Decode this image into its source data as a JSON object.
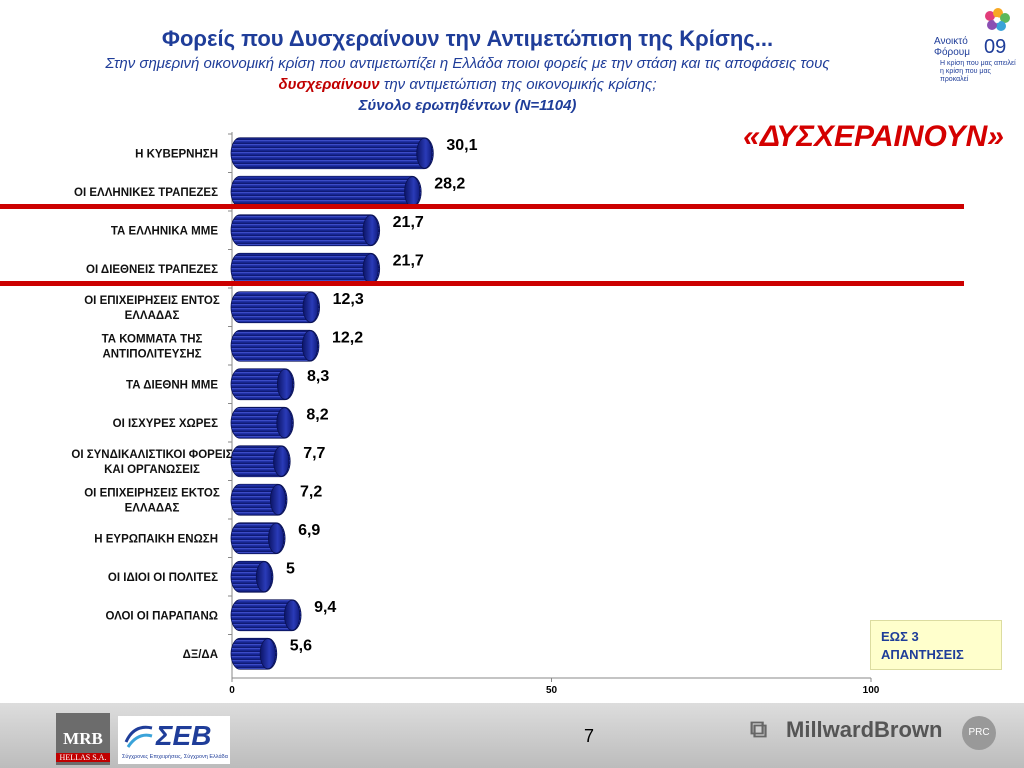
{
  "header": {
    "title": "Φορείς που Δυσχεραίνουν την Αντιμετώπιση της Κρίσης...",
    "subtitle_line1": "Στην σημερινή οικονομική κρίση που αντιμετωπίζει η Ελλάδα ποιοι φορείς με την στάση και τις αποφάσεις τους",
    "subtitle_highlight": "δυσχεραίνουν",
    "subtitle_line2_rest": " την αντιμετώπιση της οικονομικής κρίσης;",
    "sample": "Σύνολο ερωτηθέντων (N=1104)",
    "big_label": "«ΔΥΣΧΕΡΑΙΝΟΥΝ»"
  },
  "logo_top": {
    "text_line1": "Ανοικτό",
    "text_line2": "Φόρουμ",
    "year": "09",
    "tagline": "Η κρίση που μας απειλεί η κρίση που μας προκαλεί"
  },
  "note": {
    "line1": "ΕΩΣ 3",
    "line2": "ΑΠΑΝΤΗΣΕΙΣ"
  },
  "footer": {
    "mrb_text": "MRB",
    "mrb_sub": "HELLAS S.A.",
    "seb_text": "ΣΕΒ",
    "seb_tagline": "Σύγχρονες Επιχειρήσεις, Σύγχρονη Ελλάδα",
    "page_number": "7",
    "millward": "Millward",
    "brown": "Brown",
    "prc": "PRC"
  },
  "colors": {
    "bar": "#1a2a9c",
    "bar_dark": "#0b1466",
    "highlight_line": "#cc0000",
    "title": "#1f3d99"
  },
  "chart_data": {
    "type": "bar",
    "orientation": "horizontal",
    "categories": [
      "Η ΚΥΒΕΡΝΗΣΗ",
      "ΟΙ ΕΛΛΗΝΙΚΕΣ ΤΡΑΠΕΖΕΣ",
      "ΤΑ ΕΛΛΗΝΙΚΑ ΜΜΕ",
      "ΟΙ ΔΙΕΘΝΕΙΣ ΤΡΑΠΕΖΕΣ",
      "ΟΙ ΕΠΙΧΕΙΡΗΣΕΙΣ ΕΝΤΟΣ ΕΛΛΑΔΑΣ",
      "ΤΑ ΚΟΜΜΑΤΑ ΤΗΣ ΑΝΤΙΠΟΛΙΤΕΥΣΗΣ",
      "ΤΑ ΔΙΕΘΝΗ ΜΜΕ",
      "ΟΙ ΙΣΧΥΡΕΣ ΧΩΡΕΣ",
      "ΟΙ ΣΥΝΔΙΚΑΛΙΣΤΙΚΟΙ ΦΟΡΕΙΣ ΚΑΙ ΟΡΓΑΝΩΣΕΙΣ",
      "ΟΙ ΕΠΙΧΕΙΡΗΣΕΙΣ ΕΚΤΟΣ ΕΛΛΑΔΑΣ",
      "Η ΕΥΡΩΠΑΙΚΗ ΕΝΩΣΗ",
      "ΟΙ ΙΔΙΟΙ ΟΙ ΠΟΛΙΤΕΣ",
      "ΟΛΟΙ ΟΙ ΠΑΡΑΠΑΝΩ",
      "ΔΞ/ΔΑ"
    ],
    "category_lines": [
      [
        "Η ΚΥΒΕΡΝΗΣΗ"
      ],
      [
        "ΟΙ ΕΛΛΗΝΙΚΕΣ ΤΡΑΠΕΖΕΣ"
      ],
      [
        "ΤΑ ΕΛΛΗΝΙΚΑ ΜΜΕ"
      ],
      [
        "ΟΙ ΔΙΕΘΝΕΙΣ ΤΡΑΠΕΖΕΣ"
      ],
      [
        "ΟΙ ΕΠΙΧΕΙΡΗΣΕΙΣ ΕΝΤΟΣ",
        "ΕΛΛΑΔΑΣ"
      ],
      [
        "ΤΑ ΚΟΜΜΑΤΑ ΤΗΣ",
        "ΑΝΤΙΠΟΛΙΤΕΥΣΗΣ"
      ],
      [
        "ΤΑ ΔΙΕΘΝΗ ΜΜΕ"
      ],
      [
        "ΟΙ ΙΣΧΥΡΕΣ ΧΩΡΕΣ"
      ],
      [
        "ΟΙ ΣΥΝΔΙΚΑΛΙΣΤΙΚΟΙ ΦΟΡΕΙΣ",
        "ΚΑΙ ΟΡΓΑΝΩΣΕΙΣ"
      ],
      [
        "ΟΙ ΕΠΙΧΕΙΡΗΣΕΙΣ ΕΚΤΟΣ",
        "ΕΛΛΑΔΑΣ"
      ],
      [
        "Η ΕΥΡΩΠΑΙΚΗ ΕΝΩΣΗ"
      ],
      [
        "ΟΙ ΙΔΙΟΙ ΟΙ ΠΟΛΙΤΕΣ"
      ],
      [
        "ΟΛΟΙ ΟΙ ΠΑΡΑΠΑΝΩ"
      ],
      [
        "ΔΞ/ΔΑ"
      ]
    ],
    "values": [
      30.1,
      28.2,
      21.7,
      21.7,
      12.3,
      12.2,
      8.3,
      8.2,
      7.7,
      7.2,
      6.9,
      5,
      9.4,
      5.6
    ],
    "value_labels": [
      "30,1",
      "28,2",
      "21,7",
      "21,7",
      "12,3",
      "12,2",
      "8,3",
      "8,2",
      "7,7",
      "7,2",
      "6,9",
      "5",
      "9,4",
      "5,6"
    ],
    "xlim": [
      0,
      100
    ],
    "x_ticks": [
      0,
      50,
      100
    ],
    "x_tick_labels": [
      "0",
      "50",
      "100"
    ],
    "highlighted_categories": [
      "ΤΑ ΕΛΛΗΝΙΚΑ ΜΜΕ",
      "ΟΙ ΔΙΕΘΝΕΙΣ ΤΡΑΠΕΖΕΣ"
    ],
    "grid": false,
    "title": "",
    "xlabel": "",
    "ylabel": ""
  }
}
